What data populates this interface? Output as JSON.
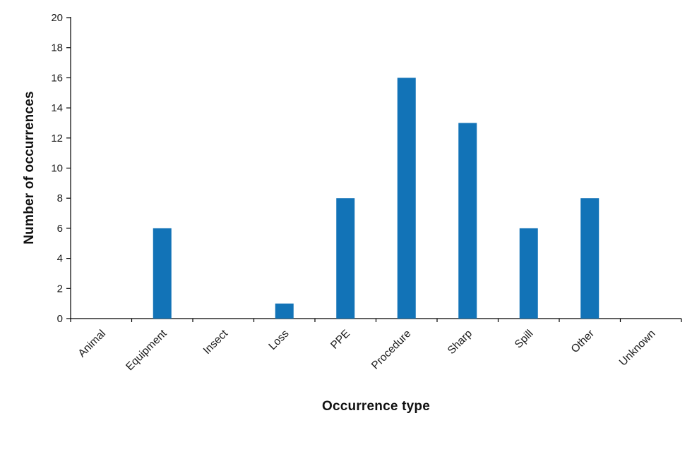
{
  "chart_data": {
    "type": "bar",
    "categories": [
      "Animal",
      "Equipment",
      "Insect",
      "Loss",
      "PPE",
      "Procedure",
      "Sharp",
      "Spill",
      "Other",
      "Unknown"
    ],
    "values": [
      0,
      6,
      0,
      1,
      8,
      16,
      13,
      6,
      8,
      0
    ],
    "title": "",
    "xlabel": "Occurrence type",
    "ylabel": "Number of occurrences",
    "ylim": [
      0,
      20
    ],
    "ytick_step": 2,
    "ytick_labels": [
      "0",
      "2",
      "4",
      "6",
      "8",
      "10",
      "12",
      "14",
      "16",
      "18",
      "20"
    ],
    "grid": false,
    "legend_position": "none",
    "bar_color": "#1273b7",
    "axis_color": "#000000",
    "tick_label_color": "#1a1a1a"
  }
}
